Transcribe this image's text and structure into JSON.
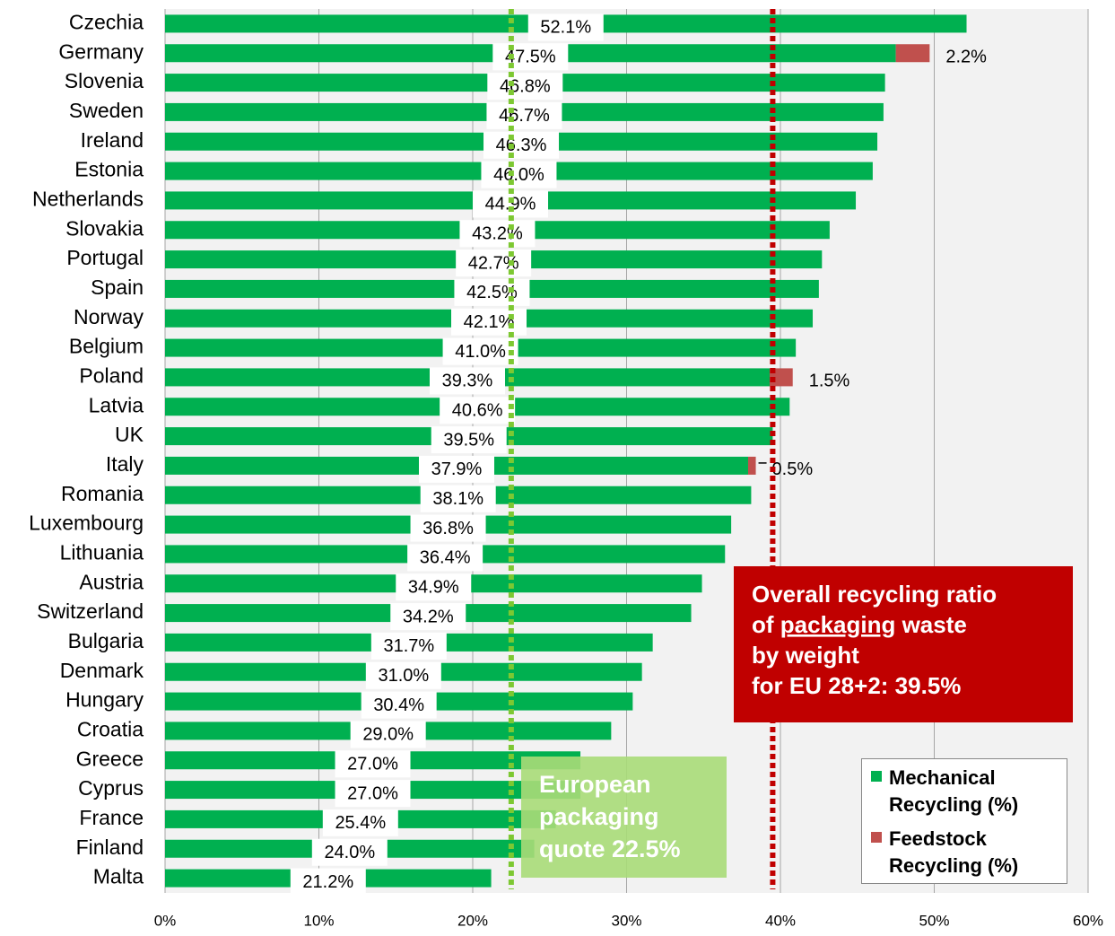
{
  "chart_data": {
    "type": "stacked_barh",
    "categories": [
      "Czechia",
      "Germany",
      "Slovenia",
      "Sweden",
      "Ireland",
      "Estonia",
      "Netherlands",
      "Slovakia",
      "Portugal",
      "Spain",
      "Norway",
      "Belgium",
      "Poland",
      "Latvia",
      "UK",
      "Italy",
      "Romania",
      "Luxembourg",
      "Lithuania",
      "Austria",
      "Switzerland",
      "Bulgaria",
      "Denmark",
      "Hungary",
      "Croatia",
      "Greece",
      "Cyprus",
      "France",
      "Finland",
      "Malta"
    ],
    "series": [
      {
        "name": "Mechanical Recycling (%)",
        "color": "#00b050",
        "values": [
          52.1,
          47.5,
          46.8,
          46.7,
          46.3,
          46.0,
          44.9,
          43.2,
          42.7,
          42.5,
          42.1,
          41.0,
          39.3,
          40.6,
          39.5,
          37.9,
          38.1,
          36.8,
          36.4,
          34.9,
          34.2,
          31.7,
          31.0,
          30.4,
          29.0,
          27.0,
          27.0,
          25.4,
          24.0,
          21.2
        ],
        "value_labels": [
          "52.1%",
          "47.5%",
          "46.8%",
          "46.7%",
          "46.3%",
          "46.0%",
          "44.9%",
          "43.2%",
          "42.7%",
          "42.5%",
          "42.1%",
          "41.0%",
          "39.3%",
          "40.6%",
          "39.5%",
          "37.9%",
          "38.1%",
          "36.8%",
          "36.4%",
          "34.9%",
          "34.2%",
          "31.7%",
          "31.0%",
          "30.4%",
          "29.0%",
          "27.0%",
          "27.0%",
          "25.4%",
          "24.0%",
          "21.2%"
        ]
      },
      {
        "name": "Feedstock Recycling (%)",
        "color": "#c0504d",
        "values": [
          null,
          2.2,
          null,
          null,
          null,
          null,
          null,
          null,
          null,
          null,
          null,
          null,
          1.5,
          null,
          null,
          0.5,
          null,
          null,
          null,
          null,
          null,
          null,
          null,
          null,
          null,
          null,
          null,
          null,
          null,
          null
        ],
        "value_labels": [
          null,
          "2.2%",
          null,
          null,
          null,
          null,
          null,
          null,
          null,
          null,
          null,
          null,
          "1.5%",
          null,
          null,
          "0.5%",
          null,
          null,
          null,
          null,
          null,
          null,
          null,
          null,
          null,
          null,
          null,
          null,
          null,
          null
        ]
      }
    ],
    "xlim": [
      0,
      60
    ],
    "xticks": [
      {
        "value": 0,
        "label": "0%"
      },
      {
        "value": 10,
        "label": "10%"
      },
      {
        "value": 20,
        "label": "20%"
      },
      {
        "value": 30,
        "label": "30%"
      },
      {
        "value": 40,
        "label": "40%"
      },
      {
        "value": 50,
        "label": "50%"
      },
      {
        "value": 60,
        "label": "60%"
      }
    ],
    "grid": true,
    "legend": "lower right",
    "reference_lines": [
      {
        "value": 22.5,
        "color": "#7dc832"
      },
      {
        "value": 39.5,
        "color": "#c00000"
      }
    ],
    "annotations": [
      {
        "color": "#c00000",
        "lines": [
          [
            {
              "text": "Overall recycling ratio"
            }
          ],
          [
            {
              "text": "of "
            },
            {
              "text": "packaging",
              "underline": true
            },
            {
              "text": " waste"
            }
          ],
          [
            {
              "text": "by weight"
            }
          ],
          [
            {
              "text": "for EU 28+2: 39.5%"
            }
          ]
        ]
      },
      {
        "color": "#a9dc78",
        "lines": [
          [
            {
              "text": "European"
            }
          ],
          [
            {
              "text": "packaging"
            }
          ],
          [
            {
              "text": "quote 22.5%"
            }
          ]
        ]
      }
    ]
  }
}
